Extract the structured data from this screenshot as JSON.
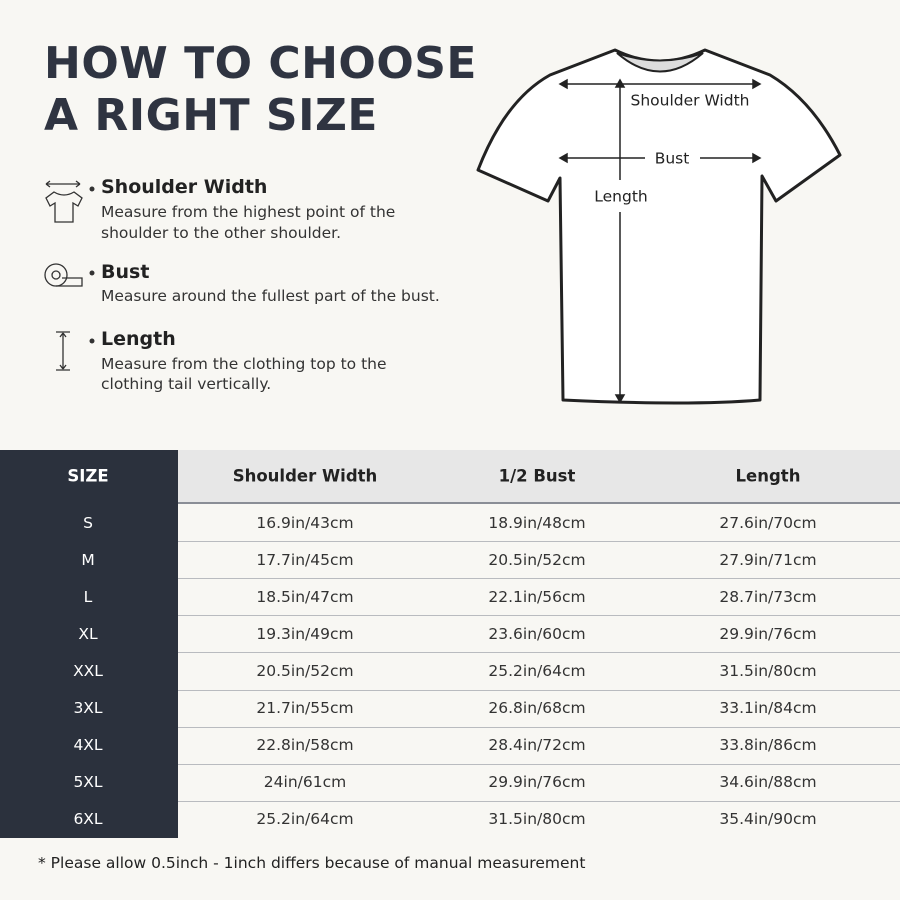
{
  "header": {
    "title_lines": [
      "HOW TO CHOOSE",
      "A RIGHT SIZE"
    ]
  },
  "guide": [
    {
      "name": "Shoulder Width",
      "description_lines": [
        "Measure from the highest point of the",
        "shoulder to the other shoulder."
      ]
    },
    {
      "name": "Bust",
      "description_lines": [
        "Measure around the fullest part of the bust."
      ]
    },
    {
      "name": "Length",
      "description_lines": [
        "Measure from the clothing top to the",
        "clothing tail vertically."
      ]
    }
  ],
  "diagram": {
    "shoulder_label": "Shoulder Width",
    "bust_label": "Bust",
    "length_label": "Length"
  },
  "table": {
    "columns": [
      "SIZE",
      "Shoulder Width",
      "1/2 Bust",
      "Length"
    ],
    "rows": [
      [
        "S",
        "16.9in/43cm",
        "18.9in/48cm",
        "27.6in/70cm"
      ],
      [
        "M",
        "17.7in/45cm",
        "20.5in/52cm",
        "27.9in/71cm"
      ],
      [
        "L",
        "18.5in/47cm",
        "22.1in/56cm",
        "28.7in/73cm"
      ],
      [
        "XL",
        "19.3in/49cm",
        "23.6in/60cm",
        "29.9in/76cm"
      ],
      [
        "XXL",
        "20.5in/52cm",
        "25.2in/64cm",
        "31.5in/80cm"
      ],
      [
        "3XL",
        "21.7in/55cm",
        "26.8in/68cm",
        "33.1in/84cm"
      ],
      [
        "4XL",
        "22.8in/58cm",
        "28.4in/72cm",
        "33.8in/86cm"
      ],
      [
        "5XL",
        "24in/61cm",
        "29.9in/76cm",
        "34.6in/88cm"
      ],
      [
        "6XL",
        "25.2in/64cm",
        "31.5in/80cm",
        "35.4in/90cm"
      ]
    ]
  },
  "footnote": "* Please allow 0.5inch - 1inch differs because of manual measurement"
}
